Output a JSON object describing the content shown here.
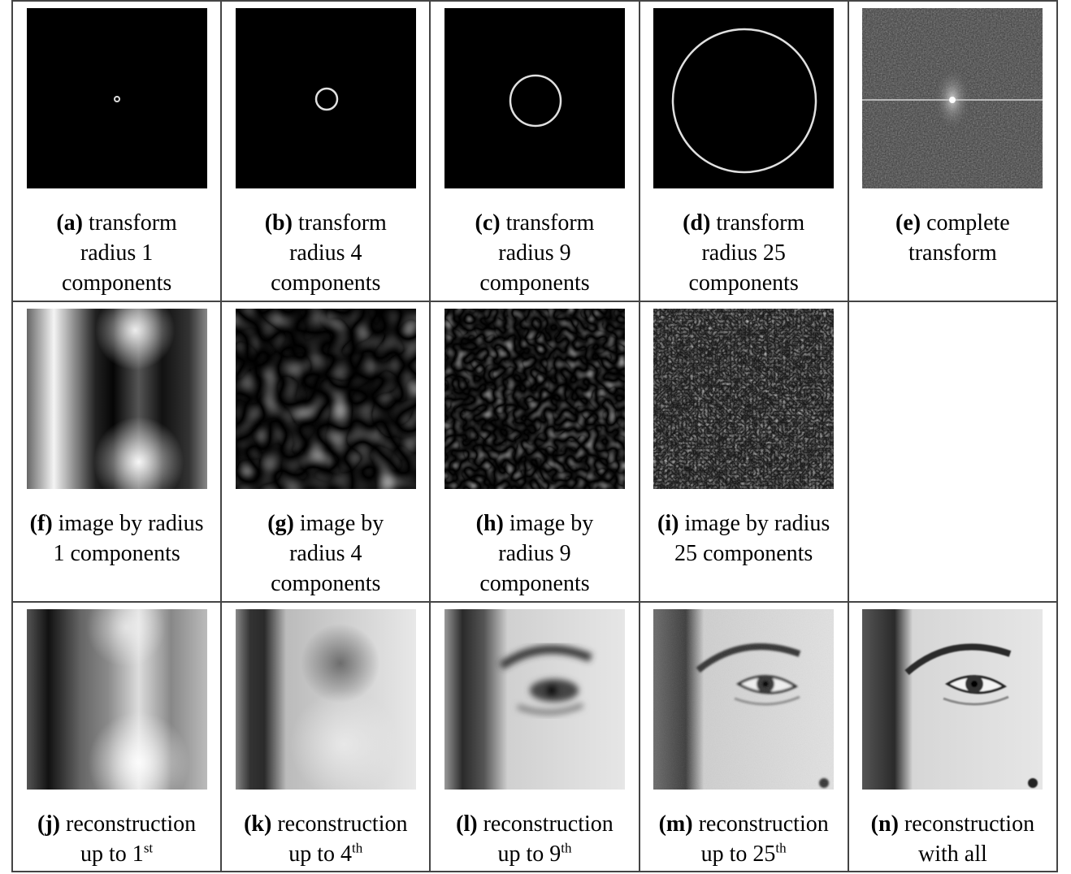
{
  "cells": {
    "a": {
      "letter": "(a)",
      "l1": "transform",
      "l2": "radius  1",
      "l3": "components"
    },
    "b": {
      "letter": "(b)",
      "l1": "transform",
      "l2": "radius  4",
      "l3": "components"
    },
    "c": {
      "letter": "(c)",
      "l1": "transform",
      "l2": "radius  9",
      "l3": "components"
    },
    "d": {
      "letter": "(d)",
      "l1": "transform",
      "l2": "radius  25",
      "l3": "components"
    },
    "e": {
      "letter": "(e)",
      "l1": "complete",
      "l2": "transform"
    },
    "f": {
      "letter": "(f)",
      "l1": "image  by radius",
      "l2": "1 components"
    },
    "g": {
      "letter": "(g)",
      "l1": "image  by",
      "l2": "radius  4",
      "l3": "components"
    },
    "h": {
      "letter": "(h)",
      "l1": "image  by",
      "l2": "radius  9",
      "l3": "components"
    },
    "i": {
      "letter": "(i)",
      "l1": "image  by radius",
      "l2": "25 components"
    },
    "j": {
      "letter": "(j)",
      "l1": "reconstruction",
      "l2": "up to 1",
      "sup": "st"
    },
    "k": {
      "letter": "(k)",
      "l1": "reconstruction",
      "l2": "up to 4",
      "sup": "th"
    },
    "l": {
      "letter": "(l)",
      "l1": "reconstruction",
      "l2": "up to 9",
      "sup": "th"
    },
    "m": {
      "letter": "(m)",
      "l1": "reconstruction",
      "l2": "up to 25",
      "sup": "th"
    },
    "n": {
      "letter": "(n)",
      "l1": "reconstruction",
      "l2": "with  all"
    }
  },
  "colors": {
    "panel_background": "#000000",
    "ring": "#e6e6e6",
    "grid_border": "#444444"
  }
}
